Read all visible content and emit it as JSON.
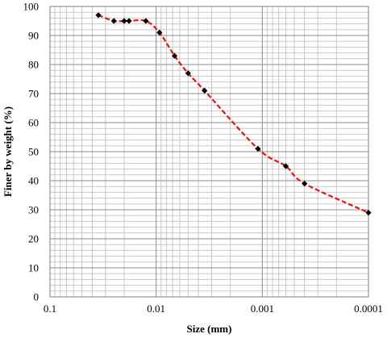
{
  "chart_data": {
    "type": "line",
    "title": "",
    "xlabel": "Size (mm)",
    "ylabel": "Finer by weight (%)",
    "x_scale": "log",
    "x_reversed": true,
    "xlim": [
      0.1,
      0.0001
    ],
    "ylim": [
      0,
      100
    ],
    "x_ticks": [
      0.1,
      0.01,
      0.001,
      0.0001
    ],
    "x_tick_labels": [
      "0.1",
      "0.01",
      "0.001",
      "0.0001"
    ],
    "y_ticks": [
      0,
      10,
      20,
      30,
      40,
      50,
      60,
      70,
      80,
      90,
      100
    ],
    "y_tick_labels": [
      "0",
      "10",
      "20",
      "30",
      "40",
      "50",
      "60",
      "70",
      "80",
      "90",
      "100"
    ],
    "grid": true,
    "legend": "none",
    "series": [
      {
        "line_color": "#ee1111",
        "line_style": "dashed",
        "marker": "diamond",
        "marker_color": "#000000",
        "x": [
          0.035,
          0.025,
          0.02,
          0.018,
          0.0125,
          0.0093,
          0.0067,
          0.005,
          0.0035,
          0.0011,
          0.0006,
          0.0004,
          0.0001
        ],
        "y": [
          97,
          95,
          95,
          95,
          95,
          91,
          83,
          77,
          71,
          51,
          45,
          39,
          29
        ]
      }
    ]
  }
}
